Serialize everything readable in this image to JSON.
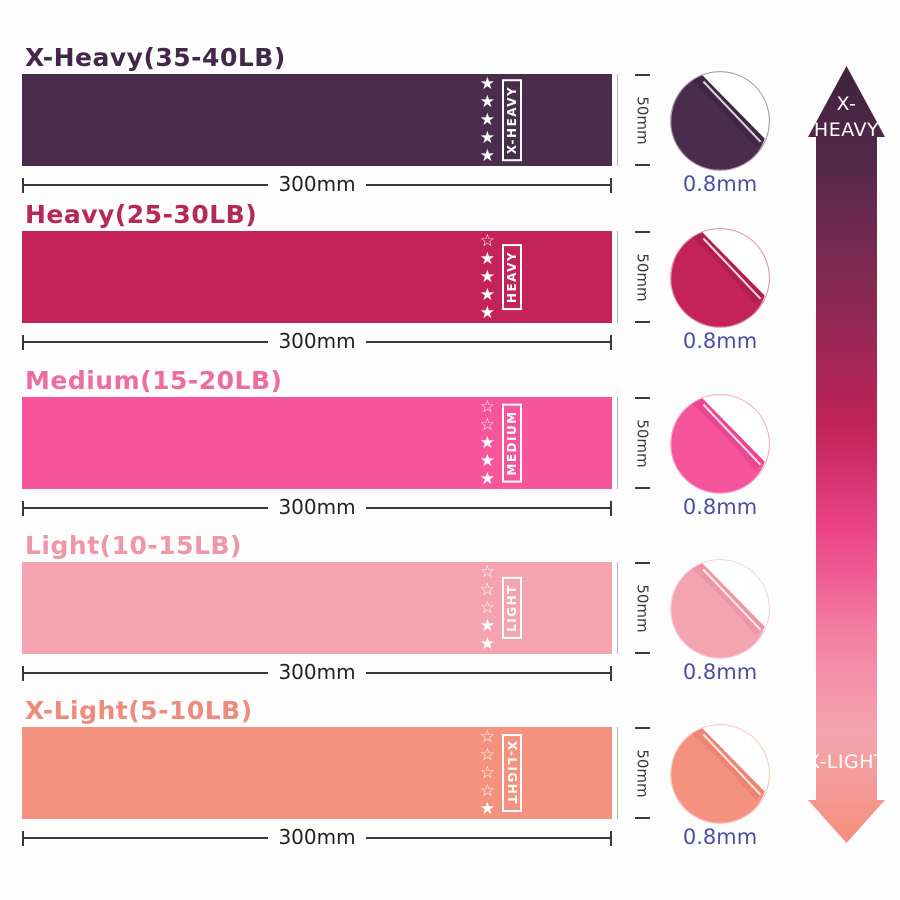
{
  "page": {
    "background": "#fdfdfd"
  },
  "rows": [
    {
      "title": "X-Heavy(35-40LB)",
      "title_color": "#432949",
      "band_color": "#4a2c4c",
      "band_color_dark": "#38203c",
      "label": "X-HEAVY",
      "stars": "★★★★★",
      "width_label": "300mm",
      "height_label": "50mm",
      "thickness_label": "0.8mm"
    },
    {
      "title": "Heavy(25-30LB)",
      "title_color": "#b52857",
      "band_color": "#c32358",
      "band_color_dark": "#a01a47",
      "label": "HEAVY",
      "stars": "☆★★★★",
      "width_label": "300mm",
      "height_label": "50mm",
      "thickness_label": "0.8mm"
    },
    {
      "title": "Medium(15-20LB)",
      "title_color": "#ee6da1",
      "band_color": "#f6549b",
      "band_color_dark": "#e03a86",
      "label": "MEDIUM",
      "stars": "☆☆★★★",
      "width_label": "300mm",
      "height_label": "50mm",
      "thickness_label": "0.8mm"
    },
    {
      "title": "Light(10-15LB)",
      "title_color": "#f097a7",
      "band_color": "#f4a3b1",
      "band_color_dark": "#ea8799",
      "label": "LIGHT",
      "stars": "☆☆☆★★",
      "width_label": "300mm",
      "height_label": "50mm",
      "thickness_label": "0.8mm"
    },
    {
      "title": "X-Light(5-10LB)",
      "title_color": "#ee8b7d",
      "band_color": "#f5917f",
      "band_color_dark": "#e87765",
      "label": "X-LIGHT",
      "stars": "☆☆☆☆★",
      "width_label": "300mm",
      "height_label": "50mm",
      "thickness_label": "0.8mm"
    }
  ],
  "gradient_arrow": {
    "top_label": "X-HEAVY",
    "bottom_label": "X-LIGHT",
    "colors": [
      "#3e233e",
      "#55294a",
      "#872953",
      "#c02357",
      "#ec4487",
      "#f483a4",
      "#f4a5b0",
      "#f58f7c"
    ]
  }
}
